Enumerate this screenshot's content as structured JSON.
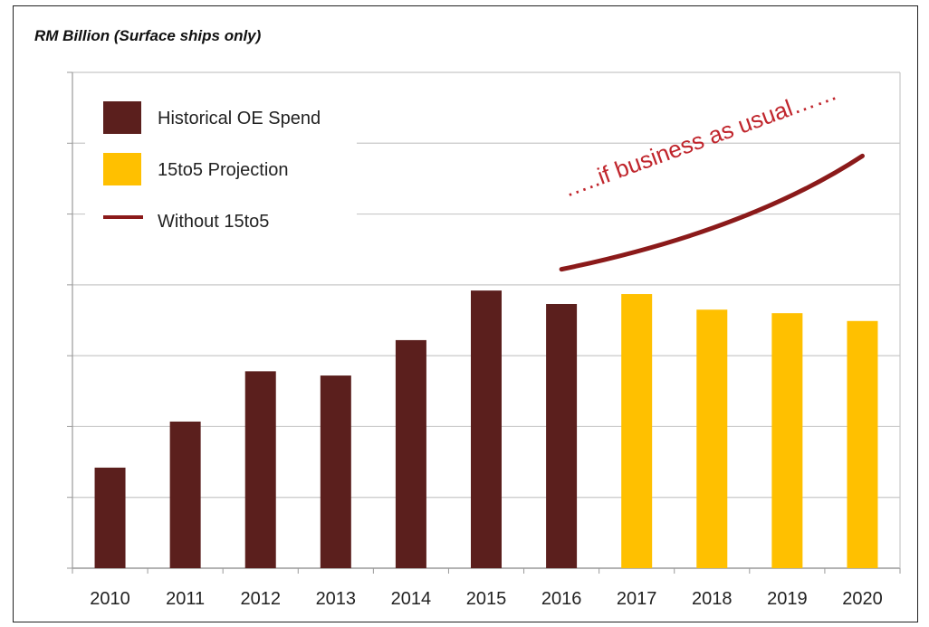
{
  "chart_data": {
    "type": "bar",
    "title": "",
    "unit_label": "RM Billion  (Surface ships only)",
    "xlabel": "",
    "ylabel": "",
    "ylim": [
      0,
      7
    ],
    "grid": true,
    "categories": [
      "2010",
      "2011",
      "2012",
      "2013",
      "2014",
      "2015",
      "2016",
      "2017",
      "2018",
      "2019",
      "2020"
    ],
    "series": [
      {
        "name": "Historical OE Spend",
        "color": "#5b1f1d",
        "values": [
          1.42,
          2.07,
          2.78,
          2.72,
          3.22,
          3.92,
          3.73,
          null,
          null,
          null,
          null
        ]
      },
      {
        "name": "15to5 Projection",
        "color": "#ffc000",
        "values": [
          null,
          null,
          null,
          null,
          null,
          null,
          null,
          3.87,
          3.65,
          3.6,
          3.49
        ]
      },
      {
        "name": "Without 15to5",
        "type": "line",
        "color": "#8b1a1a",
        "x": [
          "2016",
          "2020"
        ],
        "values": [
          4.22,
          5.82
        ]
      }
    ],
    "legend": {
      "placement": "top-left",
      "entries": [
        {
          "label": "Historical OE Spend",
          "color": "#5b1f1d",
          "shape": "box"
        },
        {
          "label": "15to5 Projection",
          "color": "#ffc000",
          "shape": "box"
        },
        {
          "label": "Without 15to5",
          "color": "#8b1a1a",
          "shape": "line"
        }
      ]
    },
    "annotation": "…..if business as usual……"
  }
}
